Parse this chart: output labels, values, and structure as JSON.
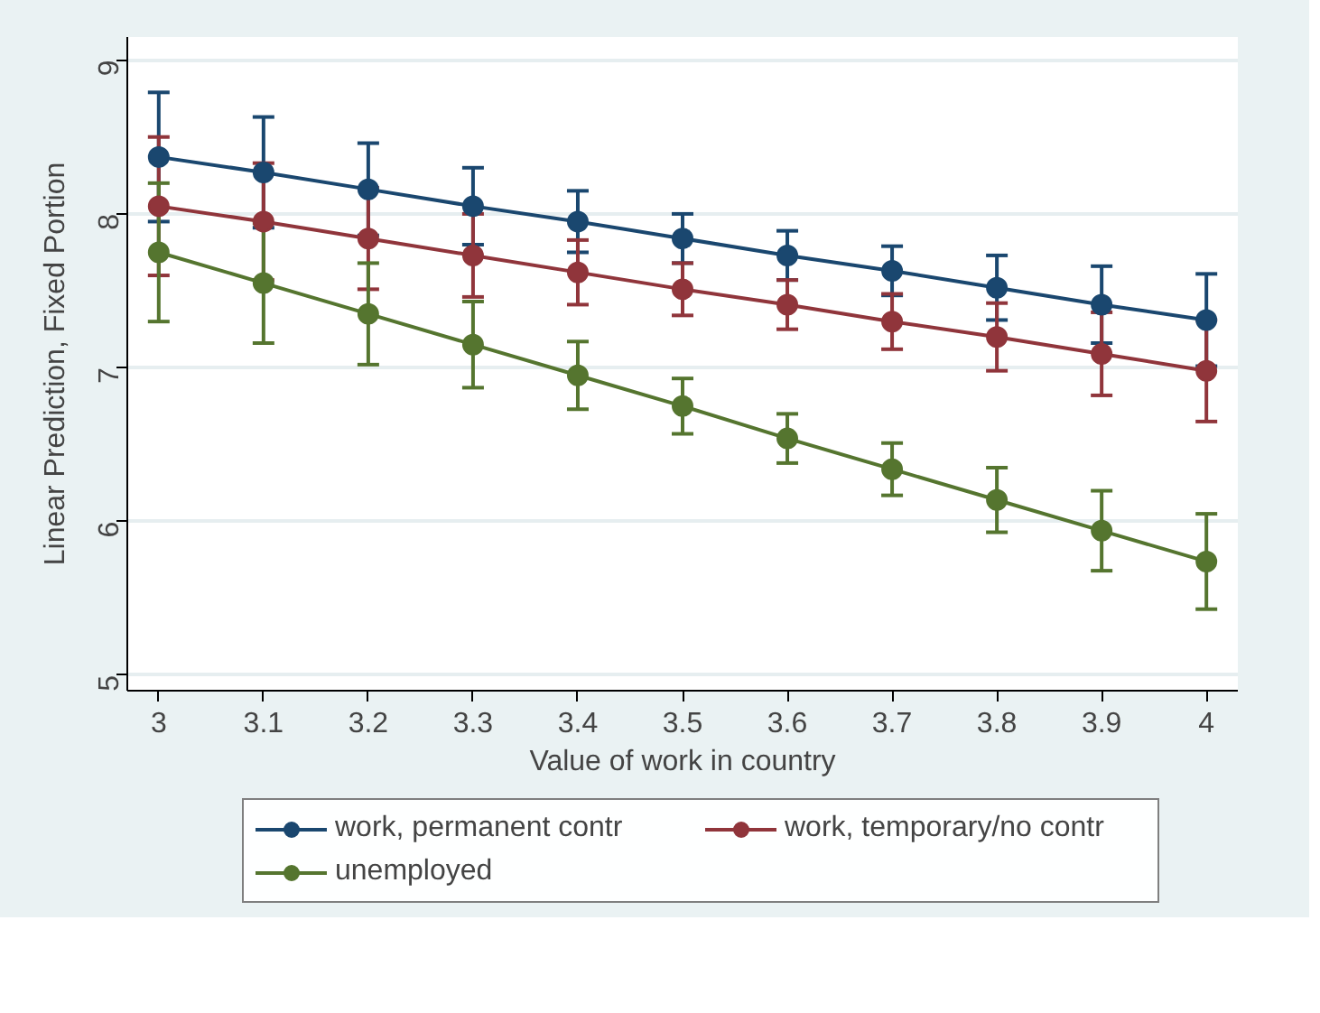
{
  "chart_data": {
    "type": "line",
    "xlabel": "Value of work in country",
    "ylabel": "Linear Prediction, Fixed Portion",
    "x": [
      3,
      3.1,
      3.2,
      3.3,
      3.4,
      3.5,
      3.6,
      3.7,
      3.8,
      3.9,
      4
    ],
    "series": [
      {
        "name": "work, permanent contr",
        "color": "#1a476f",
        "values": [
          8.37,
          8.27,
          8.16,
          8.05,
          7.95,
          7.84,
          7.73,
          7.63,
          7.52,
          7.41,
          7.31
        ],
        "errors": [
          0.42,
          0.36,
          0.3,
          0.25,
          0.2,
          0.16,
          0.16,
          0.16,
          0.21,
          0.25,
          0.3
        ]
      },
      {
        "name": "work, temporary/no contr",
        "color": "#90353b",
        "values": [
          8.05,
          7.95,
          7.84,
          7.73,
          7.62,
          7.51,
          7.41,
          7.3,
          7.2,
          7.09,
          6.98
        ],
        "errors": [
          0.45,
          0.38,
          0.33,
          0.27,
          0.21,
          0.17,
          0.16,
          0.18,
          0.22,
          0.27,
          0.33
        ]
      },
      {
        "name": "unemployed",
        "color": "#55752f",
        "values": [
          7.75,
          7.55,
          7.35,
          7.15,
          6.95,
          6.75,
          6.54,
          6.34,
          6.14,
          5.94,
          5.74
        ],
        "errors": [
          0.45,
          0.39,
          0.33,
          0.28,
          0.22,
          0.18,
          0.16,
          0.17,
          0.21,
          0.26,
          0.31
        ]
      }
    ],
    "xlim": [
      2.97,
      4.03
    ],
    "ylim": [
      4.9,
      9.15
    ],
    "xticks": [
      3,
      3.1,
      3.2,
      3.3,
      3.4,
      3.5,
      3.6,
      3.7,
      3.8,
      3.9,
      4
    ],
    "yticks": [
      5,
      6,
      7,
      8,
      9
    ],
    "grid": "y",
    "legend": "bottom",
    "marker": "circle",
    "line_style": "solid"
  }
}
